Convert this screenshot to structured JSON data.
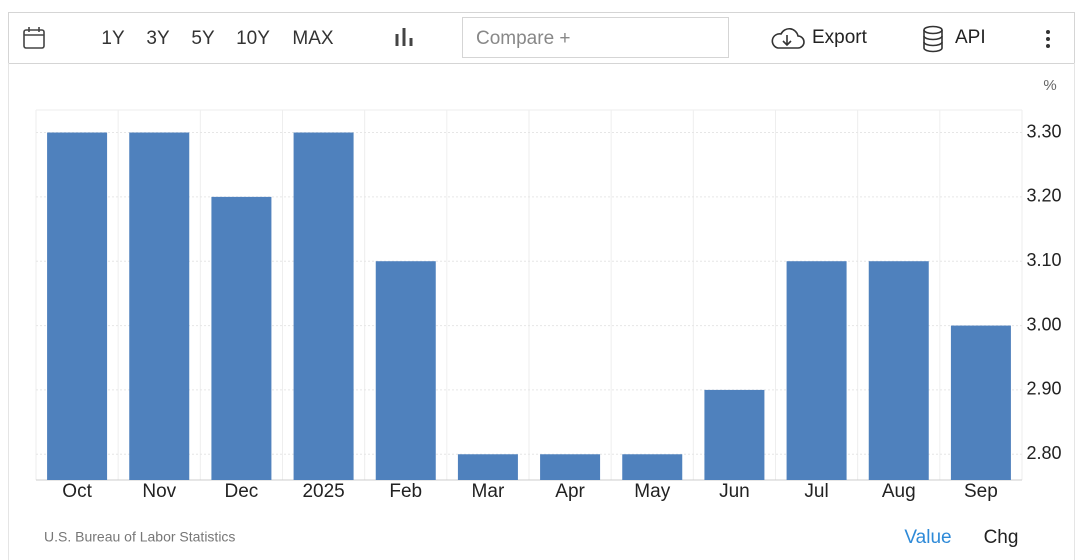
{
  "toolbar": {
    "ranges": [
      "1Y",
      "3Y",
      "5Y",
      "10Y",
      "MAX"
    ],
    "compare": "Compare +",
    "export": "Export",
    "api": "API"
  },
  "footer": {
    "source": "U.S. Bureau of Labor Statistics",
    "value": "Value",
    "chg": "Chg"
  },
  "chart_data": {
    "type": "bar",
    "unit": "%",
    "categories": [
      "Oct",
      "Nov",
      "Dec",
      "2025",
      "Feb",
      "Mar",
      "Apr",
      "May",
      "Jun",
      "Jul",
      "Aug",
      "Sep"
    ],
    "values": [
      3.3,
      3.3,
      3.2,
      3.3,
      3.1,
      2.8,
      2.8,
      2.8,
      2.9,
      3.1,
      3.1,
      3.0
    ],
    "color": "#4f81bd",
    "ylim": [
      2.76,
      3.335
    ],
    "yticks": [
      {
        "value": 2.8,
        "label": "2.80"
      },
      {
        "value": 2.9,
        "label": "2.90"
      },
      {
        "value": 3.0,
        "label": "3.00"
      },
      {
        "value": 3.1,
        "label": "3.10"
      },
      {
        "value": 3.2,
        "label": "3.20"
      },
      {
        "value": 3.3,
        "label": "3.30"
      }
    ],
    "grid": true
  }
}
